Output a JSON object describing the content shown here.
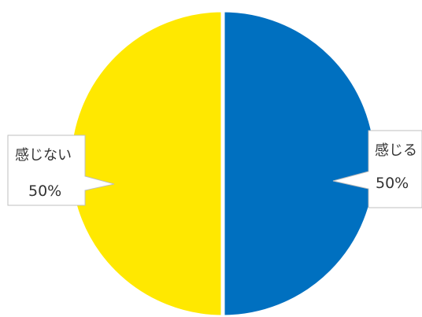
{
  "chart_data": {
    "type": "pie",
    "slices": [
      {
        "label": "感じる",
        "value": 50,
        "value_label": "50%",
        "color": "#0070C0"
      },
      {
        "label": "感じない",
        "value": 50,
        "value_label": "50%",
        "color": "#FFE800"
      }
    ],
    "start_angle": "12 o'clock",
    "direction": "clockwise",
    "separator_color": "#ffffff",
    "legend": "none"
  }
}
